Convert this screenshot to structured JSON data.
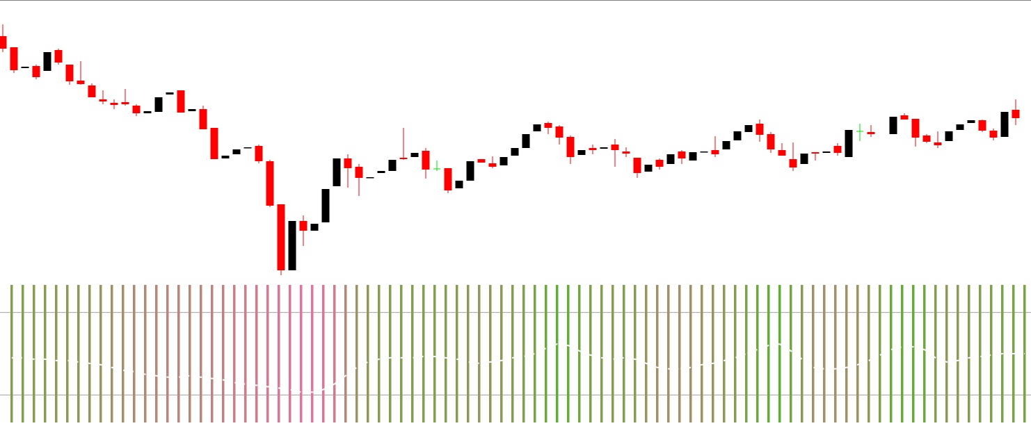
{
  "chart_data": [
    {
      "type": "candlestick",
      "x": [
        0,
        1,
        2,
        3,
        4,
        5,
        6,
        7,
        8,
        9,
        10,
        11,
        12,
        13,
        14,
        15,
        16,
        17,
        18,
        19,
        20,
        21,
        22,
        23,
        24,
        25,
        26,
        27,
        28,
        29,
        30,
        31,
        32,
        33,
        34,
        35,
        36,
        37,
        38,
        39,
        40,
        41,
        42,
        43,
        44,
        45,
        46,
        47,
        48,
        49,
        50,
        51,
        52,
        53,
        54,
        55,
        56,
        57,
        58,
        59,
        60,
        61,
        62,
        63,
        64,
        65,
        66,
        67,
        68,
        69,
        70,
        71,
        72,
        73,
        74,
        75,
        76,
        77,
        78,
        80,
        81,
        82,
        83,
        84,
        85,
        86,
        87,
        88,
        89,
        90,
        91
      ],
      "open": [
        948,
        932,
        902,
        905,
        898,
        928,
        907,
        884,
        877,
        857,
        852,
        853,
        848,
        837,
        839,
        864,
        870,
        840,
        843,
        816,
        772,
        778,
        787,
        790,
        768,
        706,
        611,
        682,
        668,
        680,
        732,
        772,
        760,
        744,
        751,
        754,
        773,
        774,
        783,
        757,
        758,
        729,
        740,
        771,
        765,
        762,
        776,
        787,
        811,
        823,
        818,
        803,
        777,
        787,
        786,
        792,
        782,
        773,
        753,
        770,
        764,
        782,
        769,
        781,
        784,
        785,
        798,
        810,
        822,
        807,
        784,
        771,
        764,
        781,
        780,
        790,
        774,
        811,
        810,
        807,
        834,
        829,
        805,
        795,
        797,
        813,
        823,
        827,
        812,
        803,
        842
      ],
      "high": [
        965,
        932,
        904,
        907,
        925,
        930,
        907,
        912,
        880,
        870,
        857,
        872,
        850,
        840,
        860,
        867,
        870,
        843,
        848,
        816,
        776,
        785,
        788,
        792,
        770,
        706,
        682,
        690,
        678,
        728,
        772,
        778,
        764,
        745,
        754,
        770,
        816,
        780,
        787,
        769,
        758,
        740,
        768,
        771,
        775,
        774,
        787,
        807,
        821,
        825,
        820,
        805,
        784,
        792,
        788,
        800,
        788,
        773,
        763,
        772,
        778,
        784,
        781,
        782,
        804,
        797,
        811,
        820,
        828,
        810,
        794,
        795,
        779,
        781,
        782,
        794,
        813,
        822,
        820,
        832,
        837,
        829,
        807,
        811,
        811,
        821,
        827,
        828,
        815,
        839,
        857
      ],
      "low": [
        925,
        895,
        902,
        886,
        898,
        907,
        878,
        878,
        860,
        850,
        843,
        848,
        833,
        837,
        839,
        864,
        838,
        840,
        814,
        771,
        772,
        778,
        787,
        765,
        702,
        604,
        611,
        646,
        668,
        680,
        732,
        730,
        718,
        744,
        751,
        754,
        770,
        774,
        743,
        754,
        722,
        729,
        740,
        766,
        758,
        762,
        776,
        787,
        811,
        807,
        792,
        764,
        777,
        778,
        786,
        760,
        774,
        744,
        753,
        756,
        764,
        764,
        769,
        781,
        774,
        785,
        798,
        810,
        796,
        780,
        776,
        754,
        764,
        769,
        780,
        776,
        774,
        797,
        803,
        807,
        828,
        789,
        794,
        787,
        797,
        813,
        823,
        810,
        798,
        803,
        820
      ],
      "close": [
        930,
        899,
        904,
        889,
        925,
        910,
        883,
        879,
        860,
        854,
        849,
        850,
        837,
        840,
        860,
        867,
        838,
        843,
        814,
        771,
        776,
        785,
        788,
        768,
        704,
        611,
        682,
        668,
        678,
        728,
        772,
        758,
        744,
        745,
        754,
        770,
        771,
        780,
        756,
        757,
        726,
        740,
        768,
        766,
        760,
        774,
        787,
        807,
        821,
        816,
        802,
        774,
        784,
        784,
        788,
        784,
        779,
        751,
        763,
        760,
        778,
        772,
        781,
        782,
        778,
        797,
        811,
        820,
        806,
        785,
        776,
        759,
        779,
        779,
        782,
        780,
        813,
        811,
        807,
        832,
        828,
        802,
        796,
        791,
        811,
        821,
        827,
        812,
        802,
        839,
        830
      ],
      "colors": {
        "up": "#000000",
        "down": "#ff0000",
        "doji": "#00e000"
      },
      "xlim": [
        -0.25,
        92.375
      ],
      "ylim": [
        600,
        1000
      ]
    },
    {
      "type": "oscillator",
      "values": [
        47,
        47,
        46,
        46,
        45,
        45,
        44,
        43,
        42,
        40,
        38,
        37,
        35,
        34,
        33,
        33,
        34,
        33,
        32,
        31,
        29,
        28,
        27,
        26,
        25,
        24,
        22,
        22,
        24,
        28,
        34,
        40,
        44,
        46,
        47,
        47,
        47,
        48,
        48,
        47,
        46,
        44,
        43,
        44,
        45,
        47,
        48,
        50,
        54,
        57,
        56,
        52,
        49,
        47,
        46,
        47,
        46,
        43,
        40,
        39,
        39,
        40,
        42,
        43,
        45,
        47,
        50,
        53,
        56,
        57,
        52,
        46,
        40,
        39,
        39,
        40,
        42,
        45,
        49,
        53,
        55,
        55,
        53,
        47,
        44,
        45,
        47,
        48,
        49,
        50,
        50,
        50
      ],
      "colors": {
        "low": "#e8709c",
        "high": "#5cb030",
        "line": "#ffffff",
        "level": "#a0a0a0"
      },
      "levels": [
        20,
        80
      ],
      "xlim": [
        -0.25,
        92.375
      ],
      "ylim": [
        0,
        100
      ]
    }
  ]
}
